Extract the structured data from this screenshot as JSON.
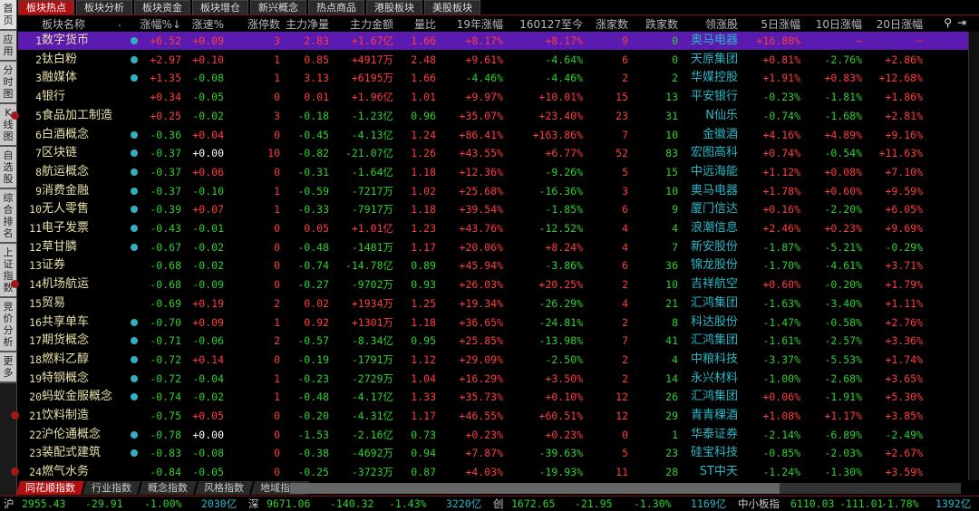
{
  "sidebar": [
    "首页",
    "应用",
    "分时图",
    "K线图",
    "自选股",
    "综合排名",
    "上证指数",
    "竞价分析",
    "更多"
  ],
  "top_tabs": [
    "板块热点",
    "板块分析",
    "板块资金",
    "板块增仓",
    "新兴概念",
    "热点商品",
    "港股板块",
    "美股板块"
  ],
  "headers": {
    "name": "板块名称",
    "dot": ".",
    "chg": "涨幅%↓",
    "speed": "涨速%",
    "limit": "涨停数",
    "netvol": "主力净量",
    "amount": "主力金额",
    "ratio": "量比",
    "y19": "19年涨幅",
    "since": "160127至今",
    "ups": "涨家数",
    "downs": "跌家数",
    "leader": "领涨股",
    "d5": "5日涨幅",
    "d10": "10日涨幅",
    "d20": "20日涨幅"
  },
  "colors": {
    "up": "#ff3c3c",
    "down": "#2ed02e",
    "leader": "#27b8c8",
    "selected_row": "#5b1bb0",
    "active_tab": "#b01010"
  },
  "rows": [
    {
      "rank": "1",
      "name": "数字货币",
      "icon": "plus",
      "chg": "+6.52",
      "speed": "+0.09",
      "limit": "3",
      "netvol": "2.83",
      "amount": "+1.67亿",
      "ratio": "1.66",
      "y19": "+8.17%",
      "since": "+8.17%",
      "ups": "9",
      "downs": "0",
      "leader": "奥马电器",
      "d5": "+16.88%",
      "d10": "–",
      "d20": "–"
    },
    {
      "rank": "2",
      "name": "钛白粉",
      "icon": "plus",
      "chg": "+2.97",
      "speed": "+0.10",
      "limit": "1",
      "netvol": "0.85",
      "amount": "+4917万",
      "ratio": "2.48",
      "y19": "+9.61%",
      "since": "-4.64%",
      "ups": "6",
      "downs": "0",
      "leader": "天原集团",
      "d5": "+0.81%",
      "d10": "-2.76%",
      "d20": "+2.86%"
    },
    {
      "rank": "3",
      "name": "融媒体",
      "icon": "plus",
      "chg": "+1.35",
      "speed": "-0.08",
      "limit": "1",
      "netvol": "3.13",
      "amount": "+6195万",
      "ratio": "1.66",
      "y19": "-4.46%",
      "since": "-4.46%",
      "ups": "2",
      "downs": "2",
      "leader": "华媒控股",
      "d5": "+1.91%",
      "d10": "+0.83%",
      "d20": "+12.68%"
    },
    {
      "rank": "4",
      "name": "银行",
      "icon": "",
      "chg": "+0.34",
      "speed": "-0.05",
      "limit": "0",
      "netvol": "0.01",
      "amount": "+1.96亿",
      "ratio": "1.01",
      "y19": "+9.97%",
      "since": "+10.01%",
      "ups": "15",
      "downs": "13",
      "leader": "平安银行",
      "d5": "-0.23%",
      "d10": "-1.81%",
      "d20": "+1.86%"
    },
    {
      "rank": "5",
      "name": "食品加工制造",
      "icon": "dot",
      "chg": "+0.25",
      "speed": "-0.02",
      "limit": "3",
      "netvol": "-0.18",
      "amount": "-1.23亿",
      "ratio": "0.96",
      "y19": "+35.07%",
      "since": "+23.40%",
      "ups": "23",
      "downs": "31",
      "leader": "N仙乐",
      "d5": "-0.74%",
      "d10": "-1.68%",
      "d20": "+2.81%"
    },
    {
      "rank": "6",
      "name": "白酒概念",
      "icon": "plus",
      "chg": "-0.36",
      "speed": "+0.04",
      "limit": "0",
      "netvol": "-0.45",
      "amount": "-4.13亿",
      "ratio": "1.24",
      "y19": "+86.41%",
      "since": "+163.86%",
      "ups": "7",
      "downs": "10",
      "leader": "金徽酒",
      "d5": "+4.16%",
      "d10": "+4.89%",
      "d20": "+9.16%"
    },
    {
      "rank": "7",
      "name": "区块链",
      "icon": "plus",
      "chg": "-0.37",
      "speed": "+0.00",
      "limit": "10",
      "netvol": "-0.82",
      "amount": "-21.07亿",
      "ratio": "1.26",
      "y19": "+43.55%",
      "since": "+6.77%",
      "ups": "52",
      "downs": "83",
      "leader": "宏图高科",
      "d5": "+0.74%",
      "d10": "-0.54%",
      "d20": "+11.63%"
    },
    {
      "rank": "8",
      "name": "航运概念",
      "icon": "plus",
      "chg": "-0.37",
      "speed": "+0.06",
      "limit": "0",
      "netvol": "-0.31",
      "amount": "-1.64亿",
      "ratio": "1.18",
      "y19": "+12.36%",
      "since": "-9.26%",
      "ups": "5",
      "downs": "15",
      "leader": "中远海能",
      "d5": "+1.12%",
      "d10": "+0.08%",
      "d20": "+7.10%"
    },
    {
      "rank": "9",
      "name": "消费金融",
      "icon": "plus",
      "chg": "-0.37",
      "speed": "-0.10",
      "limit": "1",
      "netvol": "-0.59",
      "amount": "-7217万",
      "ratio": "1.02",
      "y19": "+25.68%",
      "since": "-16.36%",
      "ups": "3",
      "downs": "10",
      "leader": "奥马电器",
      "d5": "+1.78%",
      "d10": "+0.60%",
      "d20": "+9.59%"
    },
    {
      "rank": "10",
      "name": "无人零售",
      "icon": "plus",
      "chg": "-0.39",
      "speed": "+0.07",
      "limit": "1",
      "netvol": "-0.33",
      "amount": "-7917万",
      "ratio": "1.18",
      "y19": "+39.54%",
      "since": "-1.85%",
      "ups": "6",
      "downs": "9",
      "leader": "厦门信达",
      "d5": "+0.16%",
      "d10": "-2.20%",
      "d20": "+6.05%"
    },
    {
      "rank": "11",
      "name": "电子发票",
      "icon": "plus",
      "chg": "-0.43",
      "speed": "-0.01",
      "limit": "0",
      "netvol": "0.05",
      "amount": "+1.01亿",
      "ratio": "1.23",
      "y19": "+43.76%",
      "since": "-12.52%",
      "ups": "4",
      "downs": "4",
      "leader": "浪潮信息",
      "d5": "+2.46%",
      "d10": "+0.23%",
      "d20": "+9.69%"
    },
    {
      "rank": "12",
      "name": "草甘膦",
      "icon": "plus",
      "chg": "-0.67",
      "speed": "-0.02",
      "limit": "0",
      "netvol": "-0.48",
      "amount": "-1481万",
      "ratio": "1.17",
      "y19": "+20.06%",
      "since": "+8.24%",
      "ups": "4",
      "downs": "7",
      "leader": "新安股份",
      "d5": "-1.87%",
      "d10": "-5.21%",
      "d20": "-0.29%"
    },
    {
      "rank": "13",
      "name": "证券",
      "icon": "",
      "chg": "-0.68",
      "speed": "-0.02",
      "limit": "0",
      "netvol": "-0.74",
      "amount": "-14.78亿",
      "ratio": "0.89",
      "y19": "+45.94%",
      "since": "-3.86%",
      "ups": "6",
      "downs": "36",
      "leader": "锦龙股份",
      "d5": "-1.70%",
      "d10": "-4.61%",
      "d20": "+3.71%"
    },
    {
      "rank": "14",
      "name": "机场航运",
      "icon": "dot",
      "chg": "-0.68",
      "speed": "-0.09",
      "limit": "0",
      "netvol": "-0.27",
      "amount": "-9702万",
      "ratio": "0.93",
      "y19": "+26.03%",
      "since": "+20.25%",
      "ups": "2",
      "downs": "10",
      "leader": "吉祥航空",
      "d5": "+0.60%",
      "d10": "-0.20%",
      "d20": "+1.79%"
    },
    {
      "rank": "15",
      "name": "贸易",
      "icon": "",
      "chg": "-0.69",
      "speed": "+0.19",
      "limit": "2",
      "netvol": "0.02",
      "amount": "+1934万",
      "ratio": "1.25",
      "y19": "+19.34%",
      "since": "-26.29%",
      "ups": "4",
      "downs": "21",
      "leader": "汇鸿集团",
      "d5": "-1.63%",
      "d10": "-3.40%",
      "d20": "+1.11%"
    },
    {
      "rank": "16",
      "name": "共享单车",
      "icon": "plus",
      "chg": "-0.70",
      "speed": "+0.09",
      "limit": "1",
      "netvol": "0.92",
      "amount": "+1301万",
      "ratio": "1.18",
      "y19": "+36.65%",
      "since": "-24.81%",
      "ups": "2",
      "downs": "8",
      "leader": "科达股份",
      "d5": "-1.47%",
      "d10": "-0.58%",
      "d20": "+2.76%"
    },
    {
      "rank": "17",
      "name": "期货概念",
      "icon": "plus",
      "chg": "-0.71",
      "speed": "-0.06",
      "limit": "2",
      "netvol": "-0.57",
      "amount": "-8.34亿",
      "ratio": "0.95",
      "y19": "+25.85%",
      "since": "-13.98%",
      "ups": "7",
      "downs": "41",
      "leader": "汇鸿集团",
      "d5": "-1.61%",
      "d10": "-2.57%",
      "d20": "+3.36%"
    },
    {
      "rank": "18",
      "name": "燃料乙醇",
      "icon": "plus",
      "chg": "-0.72",
      "speed": "+0.14",
      "limit": "0",
      "netvol": "-0.19",
      "amount": "-1791万",
      "ratio": "1.12",
      "y19": "+29.09%",
      "since": "-2.50%",
      "ups": "2",
      "downs": "4",
      "leader": "中粮科技",
      "d5": "-3.37%",
      "d10": "-5.53%",
      "d20": "+1.74%"
    },
    {
      "rank": "19",
      "name": "特钢概念",
      "icon": "plus",
      "chg": "-0.72",
      "speed": "-0.04",
      "limit": "1",
      "netvol": "-0.23",
      "amount": "-2729万",
      "ratio": "1.04",
      "y19": "+16.29%",
      "since": "+3.50%",
      "ups": "2",
      "downs": "14",
      "leader": "永兴材料",
      "d5": "-1.00%",
      "d10": "-2.68%",
      "d20": "+3.65%"
    },
    {
      "rank": "20",
      "name": "蚂蚁金服概念",
      "icon": "plus",
      "chg": "-0.74",
      "speed": "-0.02",
      "limit": "1",
      "netvol": "-0.48",
      "amount": "-4.17亿",
      "ratio": "1.33",
      "y19": "+35.73%",
      "since": "+0.10%",
      "ups": "12",
      "downs": "26",
      "leader": "汇鸿集团",
      "d5": "+0.06%",
      "d10": "-1.91%",
      "d20": "+5.30%"
    },
    {
      "rank": "21",
      "name": "饮料制造",
      "icon": "dot",
      "chg": "-0.75",
      "speed": "+0.05",
      "limit": "0",
      "netvol": "-0.20",
      "amount": "-4.31亿",
      "ratio": "1.17",
      "y19": "+46.55%",
      "since": "+60.51%",
      "ups": "12",
      "downs": "29",
      "leader": "青青稞酒",
      "d5": "+1.08%",
      "d10": "+1.17%",
      "d20": "+3.85%"
    },
    {
      "rank": "22",
      "name": "沪伦通概念",
      "icon": "plus",
      "chg": "-0.78",
      "speed": "+0.00",
      "limit": "0",
      "netvol": "-1.53",
      "amount": "-2.16亿",
      "ratio": "0.73",
      "y19": "+0.23%",
      "since": "+0.23%",
      "ups": "0",
      "downs": "1",
      "leader": "华泰证券",
      "d5": "-2.14%",
      "d10": "-6.89%",
      "d20": "-2.49%"
    },
    {
      "rank": "23",
      "name": "装配式建筑",
      "icon": "plus",
      "chg": "-0.83",
      "speed": "-0.08",
      "limit": "0",
      "netvol": "-0.38",
      "amount": "-4692万",
      "ratio": "0.94",
      "y19": "+7.87%",
      "since": "-39.63%",
      "ups": "5",
      "downs": "23",
      "leader": "硅宝科技",
      "d5": "-0.85%",
      "d10": "-2.03%",
      "d20": "+2.67%"
    },
    {
      "rank": "24",
      "name": "燃气水务",
      "icon": "dot",
      "chg": "-0.84",
      "speed": "-0.05",
      "limit": "0",
      "netvol": "-0.25",
      "amount": "-3723万",
      "ratio": "0.87",
      "y19": "+4.03%",
      "since": "-19.93%",
      "ups": "11",
      "downs": "28",
      "leader": "ST中天",
      "d5": "-1.24%",
      "d10": "-1.30%",
      "d20": "+3.59%"
    }
  ],
  "bottom_tabs": [
    "同花顺指数",
    "行业指数",
    "概念指数",
    "风格指数",
    "地域指数"
  ],
  "status": [
    {
      "label": "沪",
      "price": "2955.43",
      "change": "-29.91",
      "pct": "-1.00%",
      "volume": "2030亿"
    },
    {
      "label": "深",
      "price": "9671.06",
      "change": "-140.32",
      "pct": "-1.43%",
      "volume": "3220亿"
    },
    {
      "label": "创",
      "price": "1672.65",
      "change": "-21.95",
      "pct": "-1.30%",
      "volume": "1169亿"
    },
    {
      "label": "中小板指",
      "price": "6110.03",
      "change": "-111.01",
      "pct": "-1.78%",
      "volume": "1392亿"
    }
  ]
}
